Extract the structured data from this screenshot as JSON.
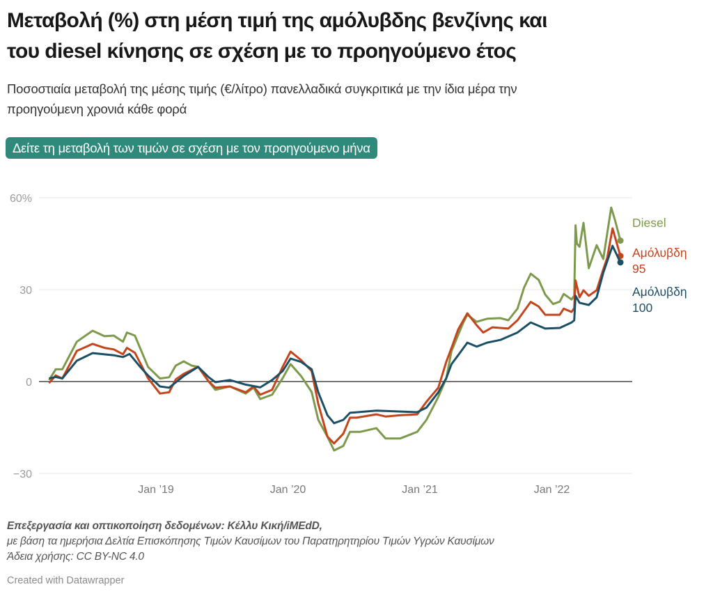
{
  "title_lines": [
    "Μεταβολή (%) στη μέση τιμή της αμόλυβδης βενζίνης και",
    "του diesel κίνησης σε σχέση με το προηγούμενο έτος"
  ],
  "subtitle_lines": [
    "Ποσοστιαία μεταβολή της μέσης τιμής (€/λίτρο) πανελλαδικά συγκριτικά με την ίδια μέρα την",
    "προηγούμενη χρονιά κάθε φορά"
  ],
  "button_label": "Δείτε τη μεταβολή των τιμών σε σχέση με τον προηγούμενο μήνα",
  "colors": {
    "diesel": "#7d9a4c",
    "am95": "#c4441b",
    "am100": "#1b4f66",
    "button": "#2f8a7c"
  },
  "notes": {
    "line1": "Επεξεργασία και οπτικοποίηση δεδομένων: Κέλλυ Κική/iMEdD,",
    "line2": "με βάση τα ημερήσια Δελτία Επισκόπησης Τιμών Καυσίμων του Παρατηρητηρίου Τιμών Υγρών Καυσίμων",
    "line3": "Άδεια χρήσης: CC BY-NC 4.0"
  },
  "credit": "Created with Datawrapper",
  "chart_data": {
    "type": "line",
    "title": "Μεταβολή (%) στη μέση τιμή της αμόλυβδης βενζίνης και του diesel κίνησης σε σχέση με το προηγούμενο έτος",
    "xlabel": "",
    "ylabel": "",
    "xlim": [
      2018.12,
      2022.61
    ],
    "ylim": [
      -30,
      60
    ],
    "y_ticks": [
      {
        "v": 60,
        "label": "60%"
      },
      {
        "v": 30,
        "label": "30"
      },
      {
        "v": 0,
        "label": "0"
      },
      {
        "v": -30,
        "label": "−30"
      }
    ],
    "x_ticks": [
      {
        "v": 2019,
        "label": "Jan ’19"
      },
      {
        "v": 2020,
        "label": "Jan ’20"
      },
      {
        "v": 2021,
        "label": "Jan ’21"
      },
      {
        "v": 2022,
        "label": "Jan ’22"
      }
    ],
    "grid": true,
    "legend": "right, direct labels at line ends",
    "series": [
      {
        "name": "Diesel",
        "label_lines": [
          "Diesel"
        ],
        "color_key": "diesel",
        "x": [
          2018.19,
          2018.24,
          2018.29,
          2018.4,
          2018.52,
          2018.61,
          2018.68,
          2018.75,
          2018.78,
          2018.84,
          2018.94,
          2019.03,
          2019.1,
          2019.15,
          2019.21,
          2019.27,
          2019.32,
          2019.4,
          2019.45,
          2019.56,
          2019.68,
          2019.74,
          2019.79,
          2019.88,
          2019.96,
          2020.02,
          2020.1,
          2020.18,
          2020.23,
          2020.3,
          2020.35,
          2020.42,
          2020.47,
          2020.55,
          2020.67,
          2020.74,
          2020.85,
          2020.98,
          2021.05,
          2021.14,
          2021.2,
          2021.24,
          2021.33,
          2021.36,
          2021.43,
          2021.51,
          2021.61,
          2021.67,
          2021.74,
          2021.79,
          2021.84,
          2021.9,
          2021.95,
          2022.01,
          2022.06,
          2022.09,
          2022.15,
          2022.17,
          2022.18,
          2022.19,
          2022.21,
          2022.24,
          2022.28,
          2022.34,
          2022.39,
          2022.45,
          2022.48,
          2022.52
        ],
        "y": [
          0.5,
          4,
          4,
          13,
          16.6,
          14.8,
          15,
          13,
          16,
          15,
          4.8,
          1,
          1.4,
          5.2,
          6.6,
          5.2,
          4.8,
          0,
          -2.7,
          -1.6,
          -3.9,
          -2,
          -5.7,
          -4.3,
          1.1,
          5.7,
          1.8,
          -3.4,
          -12.5,
          -18,
          -22.5,
          -21,
          -16.4,
          -16.4,
          -15.2,
          -18.6,
          -18.6,
          -16.4,
          -12.5,
          -5,
          1,
          10,
          19.3,
          21.8,
          19.5,
          20.5,
          20.7,
          20,
          23.8,
          30.7,
          35.2,
          33.2,
          28.4,
          25.3,
          26.1,
          28.6,
          26.8,
          28,
          51,
          45,
          44,
          51.8,
          37,
          44.5,
          40,
          56.8,
          52.5,
          46
        ]
      },
      {
        "name": "Αμόλυβδη 95",
        "label_lines": [
          "Αμόλυβδη",
          "95"
        ],
        "color_key": "am95",
        "x": [
          2018.19,
          2018.24,
          2018.29,
          2018.4,
          2018.52,
          2018.61,
          2018.68,
          2018.75,
          2018.78,
          2018.84,
          2018.94,
          2019.03,
          2019.1,
          2019.15,
          2019.21,
          2019.32,
          2019.4,
          2019.45,
          2019.56,
          2019.68,
          2019.74,
          2019.79,
          2019.88,
          2019.96,
          2020.02,
          2020.1,
          2020.18,
          2020.23,
          2020.3,
          2020.35,
          2020.42,
          2020.47,
          2020.52,
          2020.67,
          2020.74,
          2020.85,
          2020.98,
          2021.05,
          2021.14,
          2021.2,
          2021.24,
          2021.29,
          2021.36,
          2021.43,
          2021.48,
          2021.55,
          2021.67,
          2021.74,
          2021.84,
          2021.9,
          2021.95,
          2022.06,
          2022.09,
          2022.15,
          2022.17,
          2022.18,
          2022.21,
          2022.24,
          2022.28,
          2022.34,
          2022.39,
          2022.42,
          2022.46,
          2022.52
        ],
        "y": [
          -0.5,
          2,
          1,
          10,
          12.3,
          11,
          10.5,
          8.9,
          11,
          9.4,
          1.1,
          -3.9,
          -3.5,
          0.7,
          2.5,
          4.8,
          0,
          -2,
          -1.6,
          -3.5,
          -1.6,
          -4.3,
          -2.7,
          4.8,
          9.8,
          7,
          3.4,
          -7.3,
          -18,
          -20.2,
          -17,
          -11.8,
          -11.8,
          -10.7,
          -11.4,
          -11,
          -10.7,
          -6.6,
          -2,
          6.4,
          11,
          17,
          22.3,
          18.4,
          16,
          17.7,
          17.3,
          20,
          26,
          24.5,
          21.8,
          21.8,
          23.8,
          22.7,
          24,
          33,
          27.5,
          29.8,
          28,
          29.8,
          36.6,
          40.4,
          50,
          41
        ]
      },
      {
        "name": "Αμόλυβδη 100",
        "label_lines": [
          "Αμόλυβδη",
          "100"
        ],
        "color_key": "am100",
        "x": [
          2018.19,
          2018.24,
          2018.29,
          2018.4,
          2018.52,
          2018.68,
          2018.75,
          2018.8,
          2018.88,
          2018.94,
          2019.03,
          2019.1,
          2019.21,
          2019.32,
          2019.4,
          2019.45,
          2019.56,
          2019.68,
          2019.79,
          2019.88,
          2019.96,
          2020.02,
          2020.1,
          2020.18,
          2020.23,
          2020.3,
          2020.35,
          2020.42,
          2020.47,
          2020.67,
          2020.98,
          2021.05,
          2021.14,
          2021.2,
          2021.24,
          2021.29,
          2021.36,
          2021.43,
          2021.51,
          2021.61,
          2021.74,
          2021.84,
          2021.95,
          2022.06,
          2022.15,
          2022.17,
          2022.18,
          2022.21,
          2022.28,
          2022.34,
          2022.39,
          2022.46,
          2022.52
        ],
        "y": [
          1,
          1.5,
          1,
          6.8,
          9.3,
          8.6,
          8,
          9,
          4.8,
          2,
          -1.6,
          -2,
          1.8,
          4.8,
          1.4,
          -0.2,
          0.5,
          -1,
          -1.9,
          0.5,
          3.4,
          7.5,
          6.4,
          4,
          -3.5,
          -11,
          -13.6,
          -12.5,
          -10.2,
          -9.5,
          -10,
          -8.5,
          -3.5,
          1.1,
          5.7,
          8.6,
          12.7,
          11.4,
          12.7,
          13.6,
          16,
          19.3,
          17.3,
          17.5,
          19.3,
          20,
          28,
          25.7,
          25,
          27.5,
          35.5,
          44.3,
          38.9
        ]
      }
    ]
  }
}
